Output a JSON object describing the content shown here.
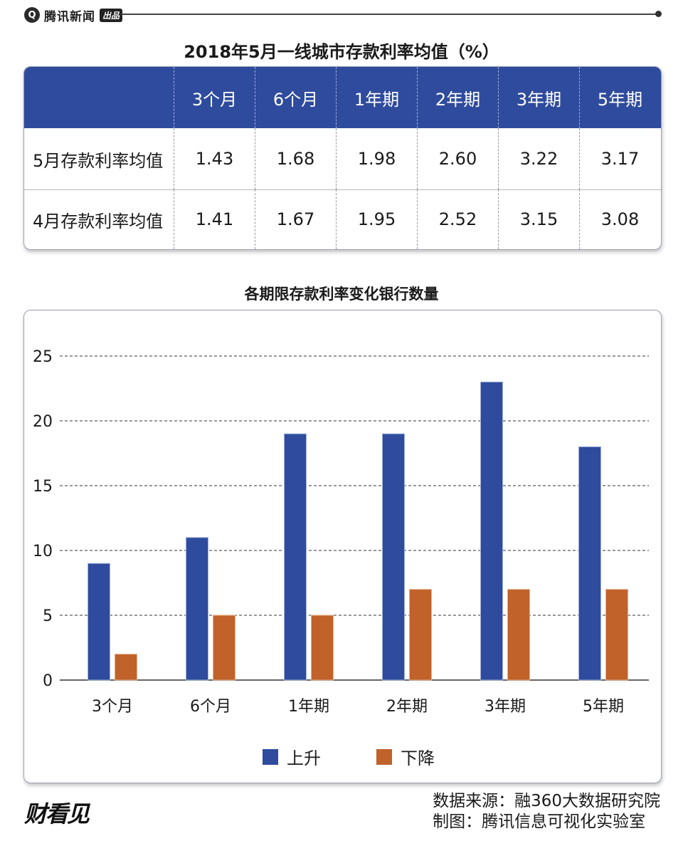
{
  "header": {
    "brand_text": "腾讯新闻",
    "brand_badge": "出品",
    "logo_glyph": "Q"
  },
  "table": {
    "title": "2018年5月一线城市存款利率均值（%）",
    "header_color": "#2f4b9d",
    "columns": [
      "3个月",
      "6个月",
      "1年期",
      "2年期",
      "3年期",
      "5年期"
    ],
    "rows": [
      {
        "label": "5月存款利率均值",
        "values": [
          "1.43",
          "1.68",
          "1.98",
          "2.60",
          "3.22",
          "3.17"
        ]
      },
      {
        "label": "4月存款利率均值",
        "values": [
          "1.41",
          "1.67",
          "1.95",
          "2.52",
          "3.15",
          "3.08"
        ]
      }
    ]
  },
  "chart_data": {
    "type": "bar",
    "title": "各期限存款利率变化银行数量",
    "categories": [
      "3个月",
      "6个月",
      "1年期",
      "2年期",
      "3年期",
      "5年期"
    ],
    "series": [
      {
        "name": "上升",
        "color": "#2f4b9d",
        "values": [
          9,
          11,
          19,
          19,
          23,
          18
        ]
      },
      {
        "name": "下降",
        "color": "#c0622a",
        "values": [
          2,
          5,
          5,
          7,
          7,
          7
        ]
      }
    ],
    "ylim": [
      0,
      25
    ],
    "yticks": [
      0,
      5,
      10,
      15,
      20,
      25
    ],
    "grid": true,
    "legend_position": "bottom-center"
  },
  "footer": {
    "logo_text": "财看见",
    "source_line": "数据来源：融360大数据研究院",
    "credit_line": "制图：腾讯信息可视化实验室"
  }
}
